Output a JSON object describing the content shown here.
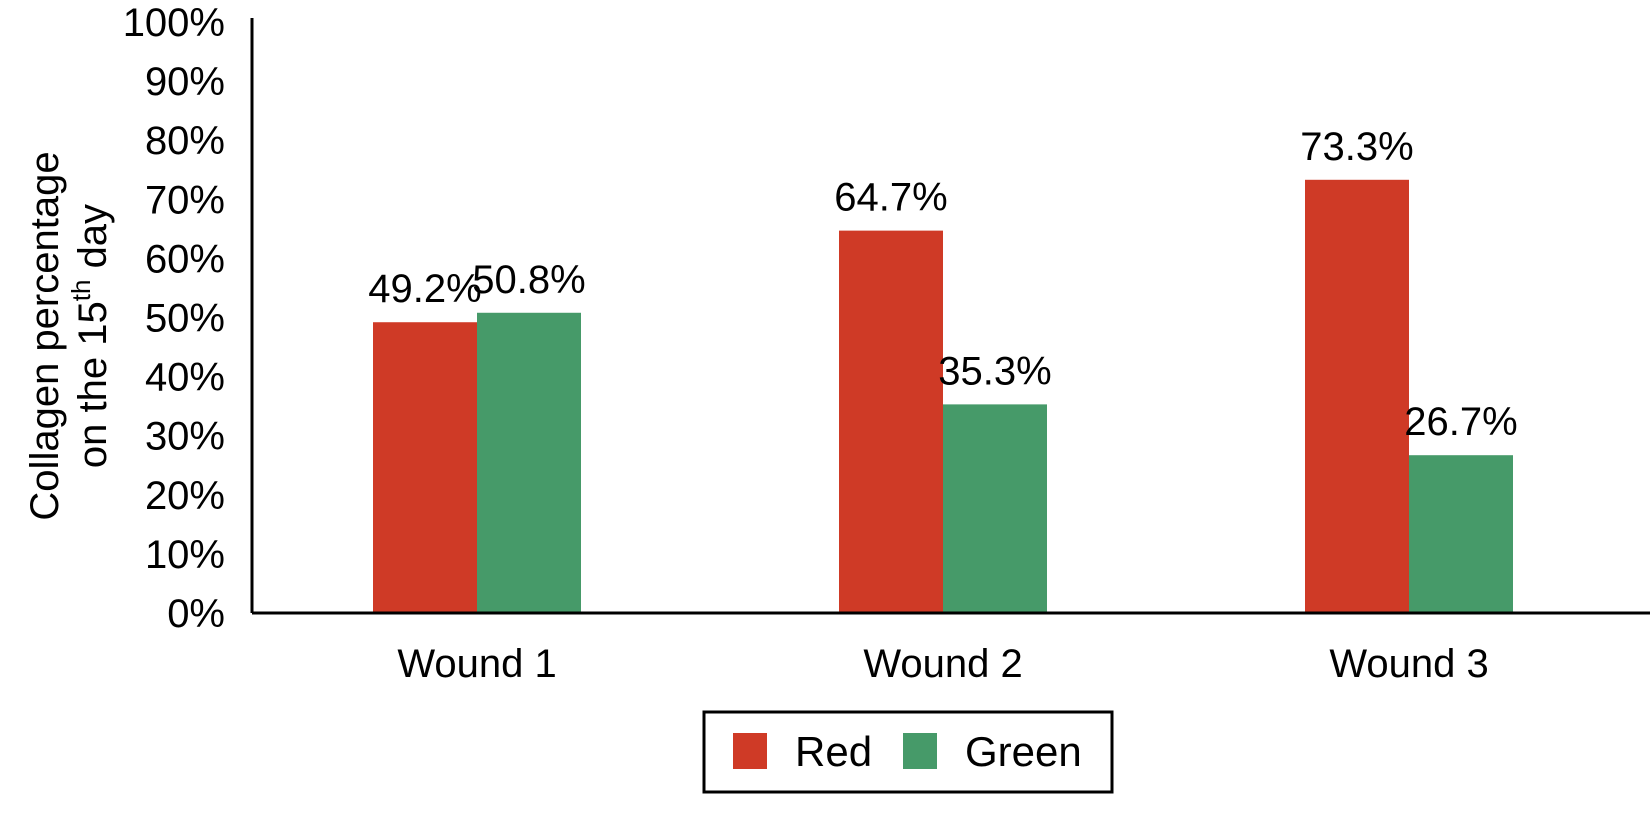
{
  "chart_data": {
    "type": "bar",
    "categories": [
      "Wound 1",
      "Wound 2",
      "Wound 3"
    ],
    "series": [
      {
        "name": "Red",
        "values": [
          49.2,
          64.7,
          73.3
        ],
        "color": "#cf3a26"
      },
      {
        "name": "Green",
        "values": [
          50.8,
          35.3,
          26.7
        ],
        "color": "#469a69"
      }
    ],
    "data_labels": [
      [
        "49.2%",
        "64.7%",
        "73.3%"
      ],
      [
        "50.8%",
        "35.3%",
        "26.7%"
      ]
    ],
    "ylabel_line1": "Collagen percentage",
    "ylabel_line2_pre": "on the 15",
    "ylabel_line2_sup": "th",
    "ylabel_line2_post": " day",
    "xlabel": "",
    "ylim": [
      0,
      100
    ],
    "yticks": [
      "0%",
      "10%",
      "20%",
      "30%",
      "40%",
      "50%",
      "60%",
      "70%",
      "80%",
      "90%",
      "100%"
    ],
    "legend_position": "bottom",
    "grid": false
  }
}
